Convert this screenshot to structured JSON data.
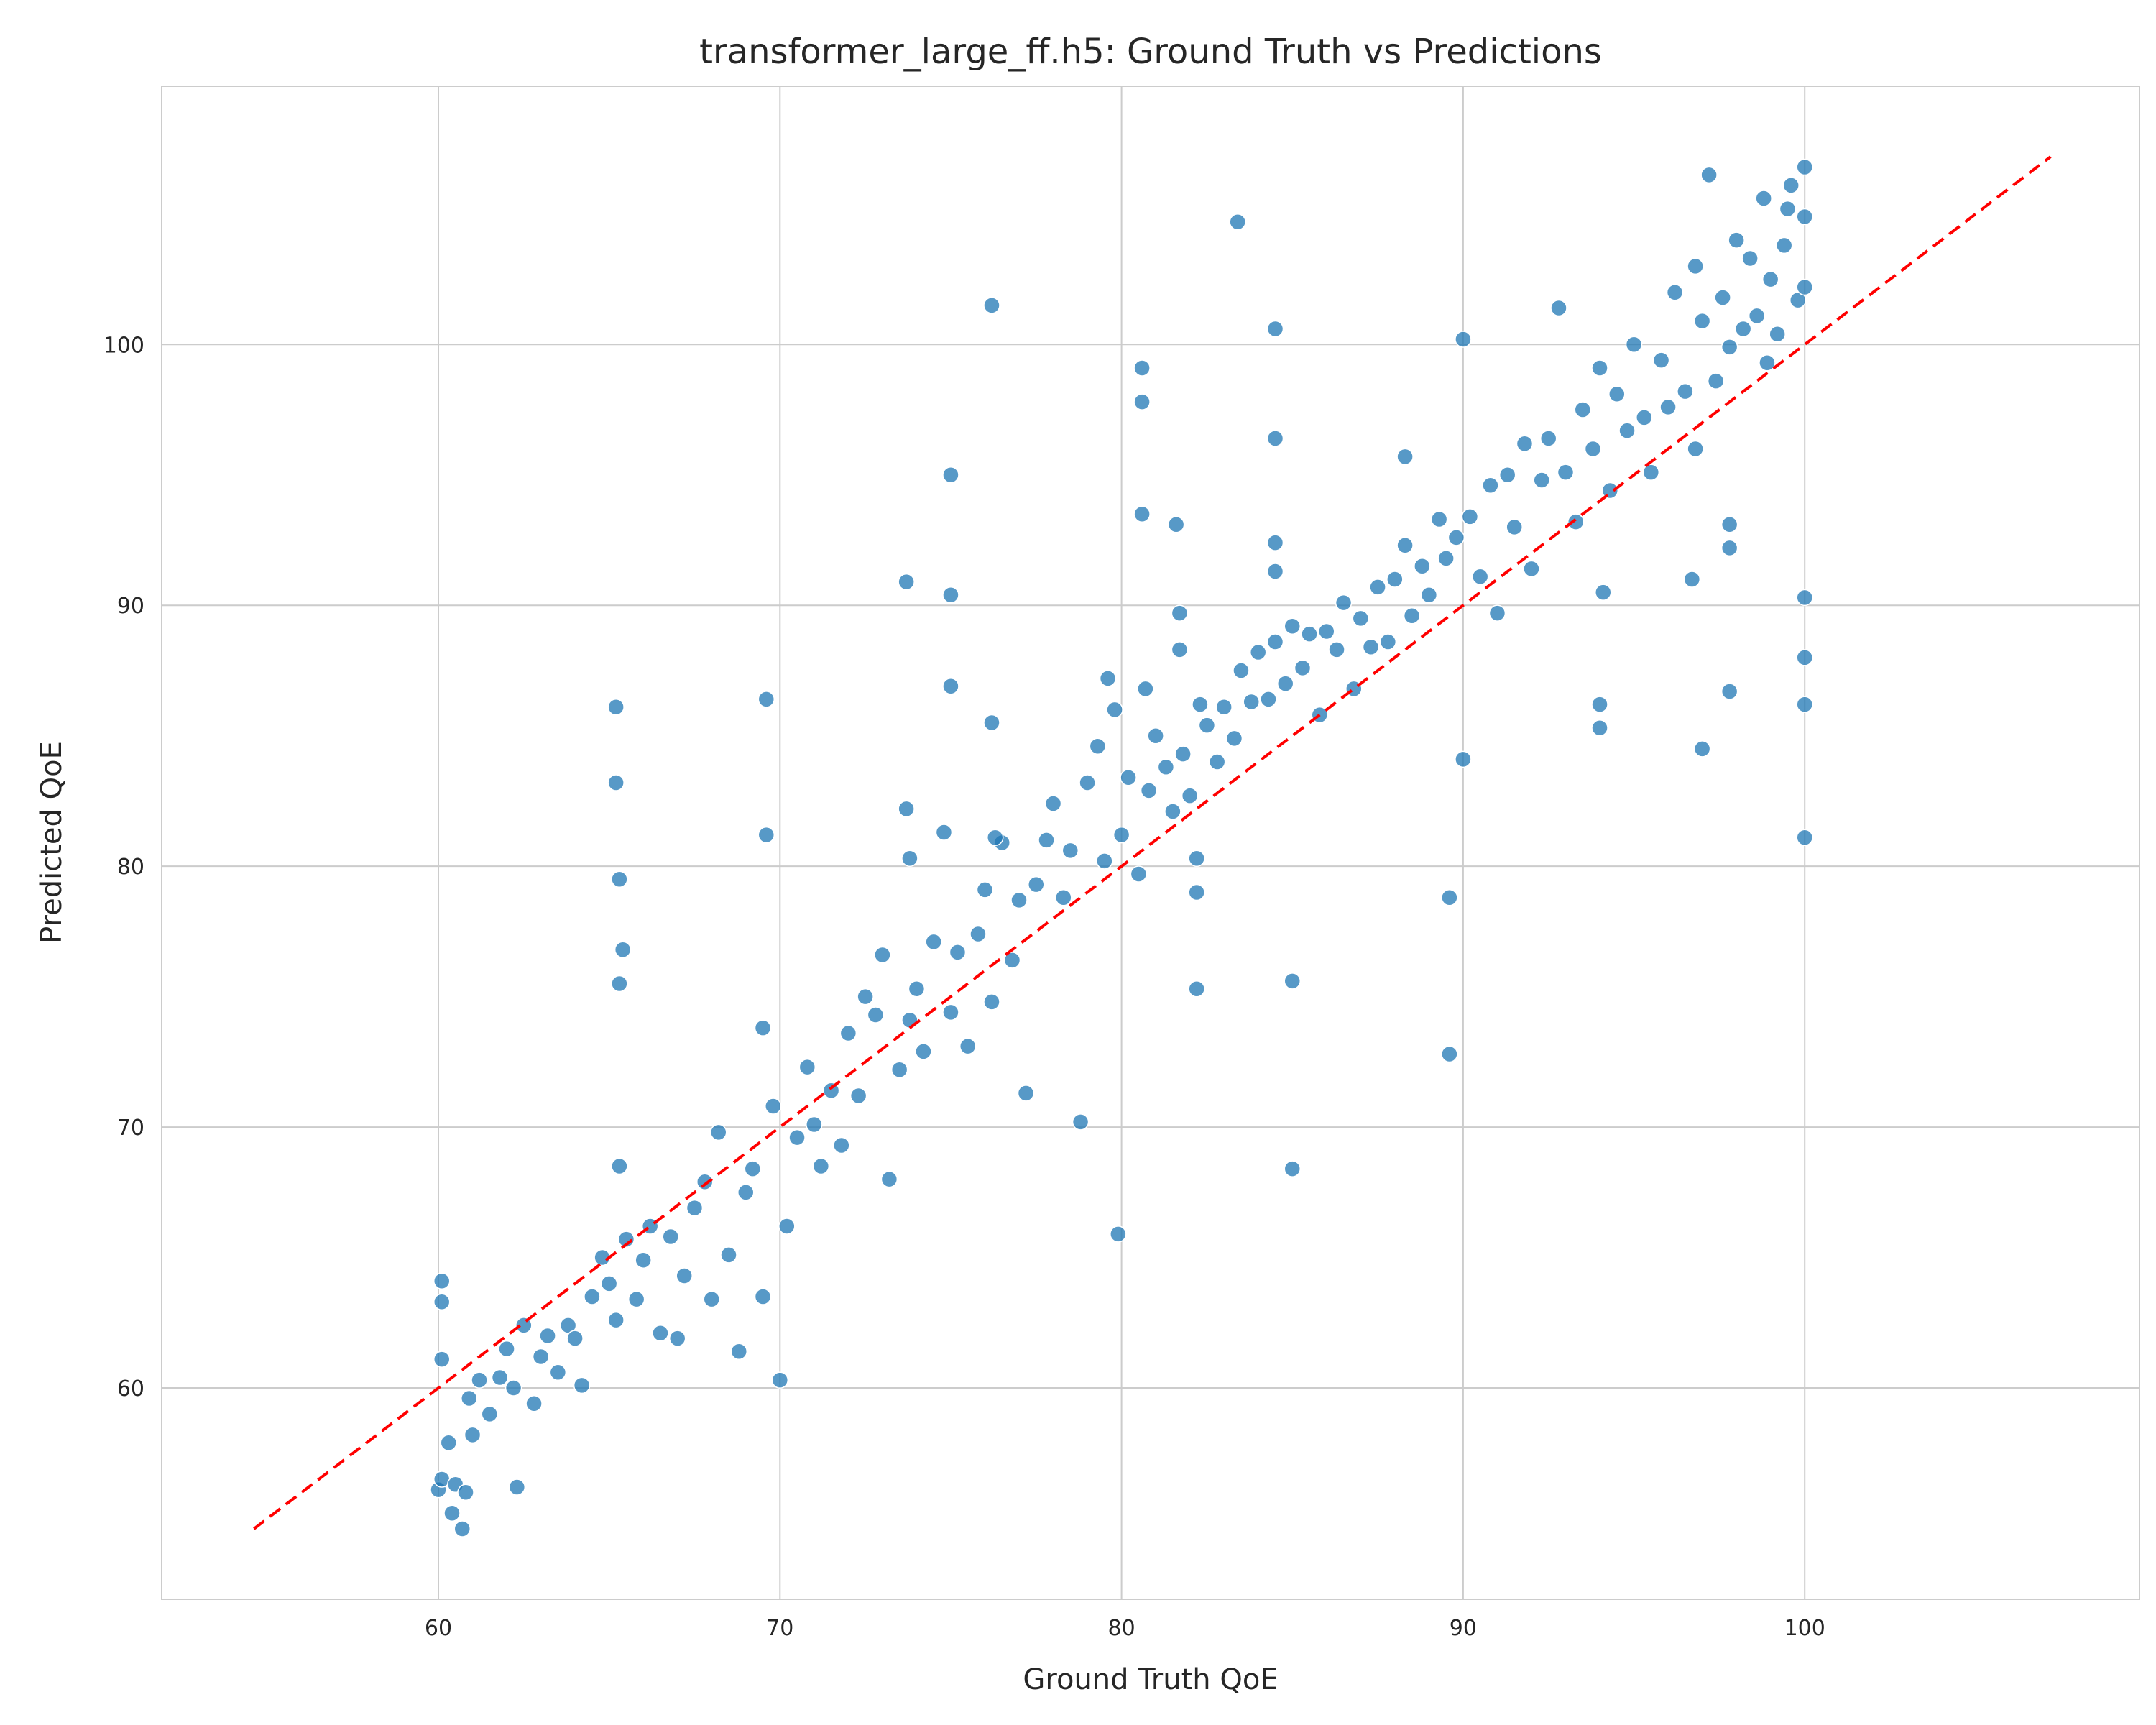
{
  "chart_data": {
    "type": "scatter",
    "title": "transformer_large_ff.h5: Ground Truth vs Predictions",
    "xlabel": "Ground Truth QoE",
    "ylabel": "Predicted QoE",
    "xlim": [
      51.9,
      109.8
    ],
    "ylim": [
      51.9,
      109.9
    ],
    "xticks": [
      60,
      70,
      80,
      90,
      100
    ],
    "yticks": [
      60,
      70,
      80,
      90,
      100
    ],
    "grid": true,
    "point_color": "#1f77b4",
    "reference_line": {
      "style": "dashed",
      "color": "#ff0000",
      "from": [
        54.6,
        54.6
      ],
      "to": [
        107.2,
        107.2
      ]
    },
    "series": [
      {
        "values": [
          [
            60.0,
            56.1
          ],
          [
            60.1,
            56.5
          ],
          [
            60.3,
            57.9
          ],
          [
            60.4,
            55.2
          ],
          [
            60.5,
            56.3
          ],
          [
            60.7,
            54.6
          ],
          [
            60.8,
            56.0
          ],
          [
            60.9,
            59.6
          ],
          [
            61.0,
            58.2
          ],
          [
            61.2,
            60.3
          ],
          [
            61.5,
            59.0
          ],
          [
            61.8,
            60.4
          ],
          [
            62.0,
            61.5
          ],
          [
            62.2,
            60.0
          ],
          [
            62.3,
            56.2
          ],
          [
            62.5,
            62.4
          ],
          [
            62.8,
            59.4
          ],
          [
            63.0,
            61.2
          ],
          [
            63.2,
            62.0
          ],
          [
            63.5,
            60.6
          ],
          [
            63.8,
            62.4
          ],
          [
            64.0,
            61.9
          ],
          [
            64.2,
            60.1
          ],
          [
            64.5,
            63.5
          ],
          [
            64.8,
            65.0
          ],
          [
            65.0,
            64.0
          ],
          [
            65.2,
            62.6
          ],
          [
            65.3,
            68.5
          ],
          [
            65.5,
            65.7
          ],
          [
            65.8,
            63.4
          ],
          [
            66.0,
            64.9
          ],
          [
            66.2,
            66.2
          ],
          [
            66.5,
            62.1
          ],
          [
            66.8,
            65.8
          ],
          [
            67.0,
            61.9
          ],
          [
            67.2,
            64.3
          ],
          [
            67.5,
            66.9
          ],
          [
            67.8,
            67.9
          ],
          [
            68.0,
            63.4
          ],
          [
            68.2,
            69.8
          ],
          [
            68.5,
            65.1
          ],
          [
            68.8,
            61.4
          ],
          [
            69.0,
            67.5
          ],
          [
            69.2,
            68.4
          ],
          [
            69.5,
            63.5
          ],
          [
            69.8,
            70.8
          ],
          [
            70.0,
            60.3
          ],
          [
            70.2,
            66.2
          ],
          [
            70.5,
            69.6
          ],
          [
            70.8,
            72.3
          ],
          [
            71.0,
            70.1
          ],
          [
            71.2,
            68.5
          ],
          [
            71.5,
            71.4
          ],
          [
            71.8,
            69.3
          ],
          [
            72.0,
            73.6
          ],
          [
            72.3,
            71.2
          ],
          [
            72.5,
            75.0
          ],
          [
            72.8,
            74.3
          ],
          [
            73.0,
            76.6
          ],
          [
            73.2,
            68.0
          ],
          [
            73.5,
            72.2
          ],
          [
            73.8,
            74.1
          ],
          [
            74.0,
            75.3
          ],
          [
            74.2,
            72.9
          ],
          [
            74.5,
            77.1
          ],
          [
            74.8,
            81.3
          ],
          [
            75.0,
            74.4
          ],
          [
            75.2,
            76.7
          ],
          [
            75.5,
            73.1
          ],
          [
            75.8,
            77.4
          ],
          [
            76.0,
            79.1
          ],
          [
            76.2,
            74.8
          ],
          [
            76.5,
            80.9
          ],
          [
            76.8,
            76.4
          ],
          [
            77.0,
            78.7
          ],
          [
            77.2,
            71.3
          ],
          [
            77.5,
            79.3
          ],
          [
            77.8,
            81.0
          ],
          [
            78.0,
            82.4
          ],
          [
            78.3,
            78.8
          ],
          [
            78.5,
            80.6
          ],
          [
            78.8,
            70.2
          ],
          [
            79.0,
            83.2
          ],
          [
            79.3,
            84.6
          ],
          [
            79.5,
            80.2
          ],
          [
            79.6,
            87.2
          ],
          [
            79.8,
            86.0
          ],
          [
            80.0,
            81.2
          ],
          [
            80.2,
            83.4
          ],
          [
            80.5,
            79.7
          ],
          [
            80.8,
            82.9
          ],
          [
            81.0,
            85.0
          ],
          [
            81.3,
            83.8
          ],
          [
            81.5,
            82.1
          ],
          [
            81.8,
            84.3
          ],
          [
            82.0,
            82.7
          ],
          [
            82.3,
            86.2
          ],
          [
            82.5,
            85.4
          ],
          [
            82.8,
            84.0
          ],
          [
            83.0,
            86.1
          ],
          [
            83.3,
            84.9
          ],
          [
            83.5,
            87.5
          ],
          [
            83.8,
            86.3
          ],
          [
            84.0,
            88.2
          ],
          [
            84.3,
            86.4
          ],
          [
            84.5,
            88.6
          ],
          [
            84.8,
            87.0
          ],
          [
            85.0,
            89.2
          ],
          [
            85.3,
            87.6
          ],
          [
            85.5,
            88.9
          ],
          [
            85.8,
            85.8
          ],
          [
            86.0,
            89.0
          ],
          [
            86.3,
            88.3
          ],
          [
            86.5,
            90.1
          ],
          [
            86.8,
            86.8
          ],
          [
            87.0,
            89.5
          ],
          [
            87.3,
            88.4
          ],
          [
            87.5,
            90.7
          ],
          [
            87.8,
            88.6
          ],
          [
            88.0,
            91.0
          ],
          [
            88.3,
            92.3
          ],
          [
            88.5,
            89.6
          ],
          [
            88.8,
            91.5
          ],
          [
            89.0,
            90.4
          ],
          [
            89.3,
            93.3
          ],
          [
            89.5,
            91.8
          ],
          [
            89.8,
            92.6
          ],
          [
            90.0,
            100.2
          ],
          [
            90.0,
            84.1
          ],
          [
            90.2,
            93.4
          ],
          [
            90.5,
            91.1
          ],
          [
            90.8,
            94.6
          ],
          [
            91.0,
            89.7
          ],
          [
            91.3,
            95.0
          ],
          [
            91.5,
            93.0
          ],
          [
            91.8,
            96.2
          ],
          [
            92.0,
            91.4
          ],
          [
            92.3,
            94.8
          ],
          [
            92.5,
            96.4
          ],
          [
            92.8,
            101.4
          ],
          [
            93.0,
            95.1
          ],
          [
            93.3,
            93.2
          ],
          [
            93.5,
            97.5
          ],
          [
            93.8,
            96.0
          ],
          [
            94.0,
            99.1
          ],
          [
            94.3,
            94.4
          ],
          [
            94.5,
            98.1
          ],
          [
            94.8,
            96.7
          ],
          [
            95.0,
            100.0
          ],
          [
            95.3,
            97.2
          ],
          [
            95.5,
            95.1
          ],
          [
            95.8,
            99.4
          ],
          [
            96.0,
            97.6
          ],
          [
            96.2,
            102.0
          ],
          [
            96.5,
            98.2
          ],
          [
            96.8,
            96.0
          ],
          [
            97.0,
            100.9
          ],
          [
            97.2,
            106.5
          ],
          [
            97.4,
            98.6
          ],
          [
            97.6,
            101.8
          ],
          [
            97.8,
            99.9
          ],
          [
            98.0,
            104.0
          ],
          [
            98.2,
            100.6
          ],
          [
            98.4,
            103.3
          ],
          [
            98.6,
            101.1
          ],
          [
            98.8,
            105.6
          ],
          [
            99.0,
            102.5
          ],
          [
            99.2,
            100.4
          ],
          [
            99.4,
            103.8
          ],
          [
            99.6,
            106.1
          ],
          [
            99.8,
            101.7
          ],
          [
            100.0,
            104.9
          ],
          [
            100.0,
            106.8
          ],
          [
            100.0,
            102.2
          ],
          [
            100.0,
            88.0
          ],
          [
            100.0,
            86.2
          ],
          [
            100.0,
            81.1
          ],
          [
            100.0,
            90.3
          ],
          [
            99.5,
            105.2
          ],
          [
            98.9,
            99.3
          ],
          [
            60.1,
            64.1
          ],
          [
            60.1,
            63.3
          ],
          [
            60.1,
            61.1
          ],
          [
            65.2,
            86.1
          ],
          [
            65.2,
            83.2
          ],
          [
            65.3,
            79.5
          ],
          [
            65.3,
            75.5
          ],
          [
            65.4,
            76.8
          ],
          [
            69.6,
            86.4
          ],
          [
            69.6,
            81.2
          ],
          [
            69.5,
            73.8
          ],
          [
            73.7,
            90.9
          ],
          [
            73.7,
            82.2
          ],
          [
            73.8,
            80.3
          ],
          [
            75.0,
            95.0
          ],
          [
            75.0,
            90.4
          ],
          [
            75.0,
            86.9
          ],
          [
            76.2,
            101.5
          ],
          [
            76.2,
            85.5
          ],
          [
            76.3,
            81.1
          ],
          [
            80.6,
            99.1
          ],
          [
            80.6,
            97.8
          ],
          [
            80.6,
            93.5
          ],
          [
            80.7,
            86.8
          ],
          [
            81.6,
            93.1
          ],
          [
            81.7,
            89.7
          ],
          [
            81.7,
            88.3
          ],
          [
            82.2,
            80.3
          ],
          [
            82.2,
            79.0
          ],
          [
            82.2,
            75.3
          ],
          [
            83.4,
            104.7
          ],
          [
            84.5,
            100.6
          ],
          [
            84.5,
            96.4
          ],
          [
            84.5,
            92.4
          ],
          [
            84.5,
            91.3
          ],
          [
            85.0,
            75.6
          ],
          [
            85.0,
            68.4
          ],
          [
            89.6,
            78.8
          ],
          [
            89.6,
            72.8
          ],
          [
            88.3,
            95.7
          ],
          [
            96.7,
            91.0
          ],
          [
            96.8,
            103.0
          ],
          [
            97.8,
            92.2
          ],
          [
            97.8,
            93.1
          ],
          [
            97.8,
            86.7
          ],
          [
            94.0,
            86.2
          ],
          [
            94.0,
            85.3
          ],
          [
            94.1,
            90.5
          ],
          [
            97.0,
            84.5
          ],
          [
            79.9,
            65.9
          ]
        ]
      }
    ]
  }
}
